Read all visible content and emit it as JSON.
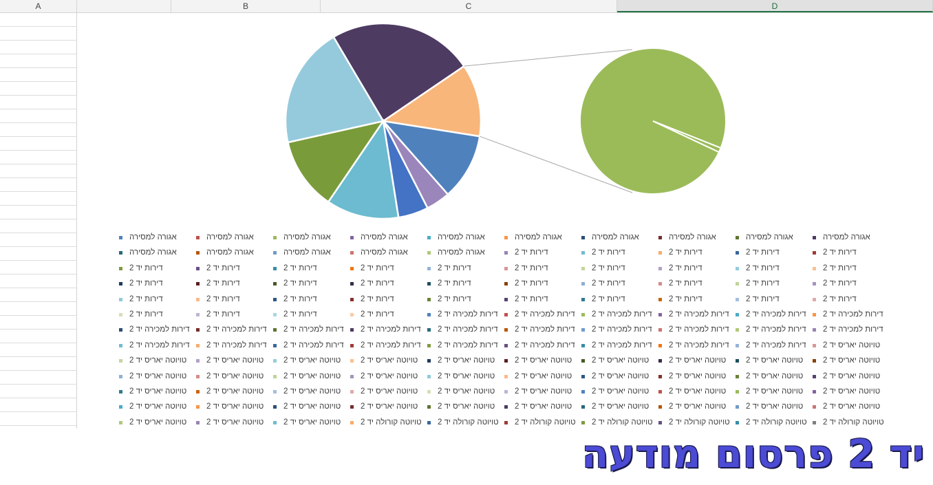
{
  "sheet": {
    "columns": [
      "A",
      "B",
      "C",
      "D"
    ],
    "selected_column": "D"
  },
  "chart_data": {
    "type": "pie",
    "subtype": "pie-of-pie",
    "main_slices": [
      {
        "value": 24,
        "color": "#4e3b62"
      },
      {
        "value": 12,
        "color": "#f9b67b"
      },
      {
        "value": 11,
        "color": "#4f81bd"
      },
      {
        "value": 4,
        "color": "#9b86bb"
      },
      {
        "value": 5,
        "color": "#4472c4"
      },
      {
        "value": 12,
        "color": "#6cbbd0"
      },
      {
        "value": 12,
        "color": "#7a9b3a"
      },
      {
        "value": 20,
        "color": "#95cadd"
      }
    ],
    "secondary_slices": [
      {
        "value": 99,
        "color": "#9bbb59"
      },
      {
        "value": 1,
        "color": "#9bbb59"
      }
    ],
    "legend": {
      "columns": 10,
      "items": [
        {
          "label": "אגורה למסירה",
          "color": "#4f81bd"
        },
        {
          "label": "אגורה למסירה",
          "color": "#c0504d"
        },
        {
          "label": "אגורה למסירה",
          "color": "#9bbb59"
        },
        {
          "label": "אגורה למסירה",
          "color": "#8064a2"
        },
        {
          "label": "אגורה למסירה",
          "color": "#4bacc6"
        },
        {
          "label": "אגורה למסירה",
          "color": "#f79646"
        },
        {
          "label": "אגורה למסירה",
          "color": "#2c4d75"
        },
        {
          "label": "אגורה למסירה",
          "color": "#772c2a"
        },
        {
          "label": "אגורה למסירה",
          "color": "#5f7530"
        },
        {
          "label": "אגורה למסירה",
          "color": "#4d3b62"
        },
        {
          "label": "אגורה למסירה",
          "color": "#276a7c"
        },
        {
          "label": "אגורה למסירה",
          "color": "#b65708"
        },
        {
          "label": "אגורה למסירה",
          "color": "#729aca"
        },
        {
          "label": "אגורה למסירה",
          "color": "#cd7371"
        },
        {
          "label": "אגורה למסירה",
          "color": "#afc97a"
        },
        {
          "label": "דירות יד 2",
          "color": "#9983b5"
        },
        {
          "label": "דירות יד 2",
          "color": "#6fbdd1"
        },
        {
          "label": "דירות יד 2",
          "color": "#f9ab6b"
        },
        {
          "label": "דירות יד 2",
          "color": "#3a679c"
        },
        {
          "label": "דירות יד 2",
          "color": "#9f3b38"
        },
        {
          "label": "דירות יד 2",
          "color": "#7e9c40"
        },
        {
          "label": "דירות יד 2",
          "color": "#664f82"
        },
        {
          "label": "דירות יד 2",
          "color": "#358ea6"
        },
        {
          "label": "דירות יד 2",
          "color": "#f3740b"
        },
        {
          "label": "דירות יד 2",
          "color": "#95b3d7"
        },
        {
          "label": "דירות יד 2",
          "color": "#d99694"
        },
        {
          "label": "דירות יד 2",
          "color": "#c3d69b"
        },
        {
          "label": "דירות יד 2",
          "color": "#b2a1c7"
        },
        {
          "label": "דירות יד 2",
          "color": "#93cddd"
        },
        {
          "label": "דירות יד 2",
          "color": "#fac090"
        },
        {
          "label": "דירות יד 2",
          "color": "#1f3a5c"
        },
        {
          "label": "דירות יד 2",
          "color": "#5a201f"
        },
        {
          "label": "דירות יד 2",
          "color": "#475824"
        },
        {
          "label": "דירות יד 2",
          "color": "#3a2c4a"
        },
        {
          "label": "דירות יד 2",
          "color": "#1d505d"
        },
        {
          "label": "דירות יד 2",
          "color": "#884105"
        },
        {
          "label": "דירות יד 2",
          "color": "#8fafd3"
        },
        {
          "label": "דירות יד 2",
          "color": "#d48c8a"
        },
        {
          "label": "דירות יד 2",
          "color": "#c0d497"
        },
        {
          "label": "דירות יד 2",
          "color": "#a494bb"
        },
        {
          "label": "דירות יד 2",
          "color": "#8fcadb"
        },
        {
          "label": "דירות יד 2",
          "color": "#fab98a"
        },
        {
          "label": "דירות יד 2",
          "color": "#2d5583"
        },
        {
          "label": "דירות יד 2",
          "color": "#852f2d"
        },
        {
          "label": "דירות יד 2",
          "color": "#6a8335"
        },
        {
          "label": "דירות יד 2",
          "color": "#564270"
        },
        {
          "label": "דירות יד 2",
          "color": "#2e7a8d"
        },
        {
          "label": "דירות יד 2",
          "color": "#cc630a"
        },
        {
          "label": "דירות יד 2",
          "color": "#a5bfdf"
        },
        {
          "label": "דירות יד 2",
          "color": "#e0a9a8"
        },
        {
          "label": "דירות יד 2",
          "color": "#d2e1b3"
        },
        {
          "label": "דירות יד 2",
          "color": "#c1b3d4"
        },
        {
          "label": "דירות יד 2",
          "color": "#a8d6e5"
        },
        {
          "label": "דירות יד 2",
          "color": "#fbcba4"
        },
        {
          "label": "דירות למכירה יד 2",
          "color": "#4f81bd"
        },
        {
          "label": "דירות למכירה יד 2",
          "color": "#c0504d"
        },
        {
          "label": "דירות למכירה יד 2",
          "color": "#9bbb59"
        },
        {
          "label": "דירות למכירה יד 2",
          "color": "#8064a2"
        },
        {
          "label": "דירות למכירה יד 2",
          "color": "#4bacc6"
        },
        {
          "label": "דירות למכירה יד 2",
          "color": "#f79646"
        },
        {
          "label": "דירות למכירה יד 2",
          "color": "#2c4d75"
        },
        {
          "label": "דירות למכירה יד 2",
          "color": "#772c2a"
        },
        {
          "label": "דירות למכירה יד 2",
          "color": "#5f7530"
        },
        {
          "label": "דירות למכירה יד 2",
          "color": "#4d3b62"
        },
        {
          "label": "דירות למכירה יד 2",
          "color": "#276a7c"
        },
        {
          "label": "דירות למכירה יד 2",
          "color": "#b65708"
        },
        {
          "label": "דירות למכירה יד 2",
          "color": "#729aca"
        },
        {
          "label": "דירות למכירה יד 2",
          "color": "#cd7371"
        },
        {
          "label": "דירות למכירה יד 2",
          "color": "#afc97a"
        },
        {
          "label": "דירות למכירה יד 2",
          "color": "#9983b5"
        },
        {
          "label": "דירות למכירה יד 2",
          "color": "#6fbdd1"
        },
        {
          "label": "דירות למכירה יד 2",
          "color": "#f9ab6b"
        },
        {
          "label": "דירות למכירה יד 2",
          "color": "#3a679c"
        },
        {
          "label": "דירות למכירה יד 2",
          "color": "#9f3b38"
        },
        {
          "label": "דירות למכירה יד 2",
          "color": "#7e9c40"
        },
        {
          "label": "דירות למכירה יד 2",
          "color": "#664f82"
        },
        {
          "label": "דירות למכירה יד 2",
          "color": "#358ea6"
        },
        {
          "label": "דירות למכירה יד 2",
          "color": "#f3740b"
        },
        {
          "label": "דירות למכירה יד 2",
          "color": "#95b3d7"
        },
        {
          "label": "טויוטה יאריס יד 2",
          "color": "#d99694"
        },
        {
          "label": "טויוטה יאריס יד 2",
          "color": "#c3d69b"
        },
        {
          "label": "טויוטה יאריס יד 2",
          "color": "#b2a1c7"
        },
        {
          "label": "טויוטה יאריס יד 2",
          "color": "#93cddd"
        },
        {
          "label": "טויוטה יאריס יד 2",
          "color": "#fac090"
        },
        {
          "label": "טויוטה יאריס יד 2",
          "color": "#1f3a5c"
        },
        {
          "label": "טויוטה יאריס יד 2",
          "color": "#5a201f"
        },
        {
          "label": "טויוטה יאריס יד 2",
          "color": "#475824"
        },
        {
          "label": "טויוטה יאריס יד 2",
          "color": "#3a2c4a"
        },
        {
          "label": "טויוטה יאריס יד 2",
          "color": "#1d505d"
        },
        {
          "label": "טויוטה יאריס יד 2",
          "color": "#884105"
        },
        {
          "label": "טויוטה יאריס יד 2",
          "color": "#8fafd3"
        },
        {
          "label": "טויוטה יאריס יד 2",
          "color": "#d48c8a"
        },
        {
          "label": "טויוטה יאריס יד 2",
          "color": "#c0d497"
        },
        {
          "label": "טויוטה יאריס יד 2",
          "color": "#a494bb"
        },
        {
          "label": "טויוטה יאריס יד 2",
          "color": "#8fcadb"
        },
        {
          "label": "טויוטה יאריס יד 2",
          "color": "#fab98a"
        },
        {
          "label": "טויוטה יאריס יד 2",
          "color": "#2d5583"
        },
        {
          "label": "טויוטה יאריס יד 2",
          "color": "#852f2d"
        },
        {
          "label": "טויוטה יאריס יד 2",
          "color": "#6a8335"
        },
        {
          "label": "טויוטה יאריס יד 2",
          "color": "#564270"
        },
        {
          "label": "טויוטה יאריס יד 2",
          "color": "#2e7a8d"
        },
        {
          "label": "טויוטה יאריס יד 2",
          "color": "#cc630a"
        },
        {
          "label": "טויוטה יאריס יד 2",
          "color": "#a5bfdf"
        },
        {
          "label": "טויוטה יאריס יד 2",
          "color": "#e0a9a8"
        },
        {
          "label": "טויוטה יאריס יד 2",
          "color": "#d2e1b3"
        },
        {
          "label": "טויוטה יאריס יד 2",
          "color": "#c1b3d4"
        },
        {
          "label": "טויוטה יאריס יד 2",
          "color": "#4f81bd"
        },
        {
          "label": "טויוטה יאריס יד 2",
          "color": "#c0504d"
        },
        {
          "label": "טויוטה יאריס יד 2",
          "color": "#9bbb59"
        },
        {
          "label": "טויוטה יאריס יד 2",
          "color": "#8064a2"
        },
        {
          "label": "טויוטה יאריס יד 2",
          "color": "#4bacc6"
        },
        {
          "label": "טויוטה יאריס יד 2",
          "color": "#f79646"
        },
        {
          "label": "טויוטה יאריס יד 2",
          "color": "#2c4d75"
        },
        {
          "label": "טויוטה יאריס יד 2",
          "color": "#772c2a"
        },
        {
          "label": "טויוטה יאריס יד 2",
          "color": "#5f7530"
        },
        {
          "label": "טויוטה יאריס יד 2",
          "color": "#4d3b62"
        },
        {
          "label": "טויוטה יאריס יד 2",
          "color": "#276a7c"
        },
        {
          "label": "טויוטה יאריס יד 2",
          "color": "#b65708"
        },
        {
          "label": "טויוטה יאריס יד 2",
          "color": "#729aca"
        },
        {
          "label": "טויוטה יאריס יד 2",
          "color": "#cd7371"
        },
        {
          "label": "טויוטה יאריס יד 2",
          "color": "#afc97a"
        },
        {
          "label": "טויוטה יאריס יד 2",
          "color": "#9983b5"
        },
        {
          "label": "טויוטה יאריס יד 2",
          "color": "#6fbdd1"
        },
        {
          "label": "טויוטה קורולה יד 2",
          "color": "#f9ab6b"
        },
        {
          "label": "טויוטה קורולה יד 2",
          "color": "#3a679c"
        },
        {
          "label": "טויוטה קורולה יד 2",
          "color": "#9f3b38"
        },
        {
          "label": "טויוטה קורולה יד 2",
          "color": "#7e9c40"
        },
        {
          "label": "טויוטה קורולה יד 2",
          "color": "#664f82"
        },
        {
          "label": "טויוטה קורולה יד 2",
          "color": "#358ea6"
        },
        {
          "label": "טויוטה קורולה יד 2",
          "color": "#7f7f7f"
        }
      ]
    }
  },
  "banner": {
    "text": "יד 2 פרסום מודעה"
  }
}
